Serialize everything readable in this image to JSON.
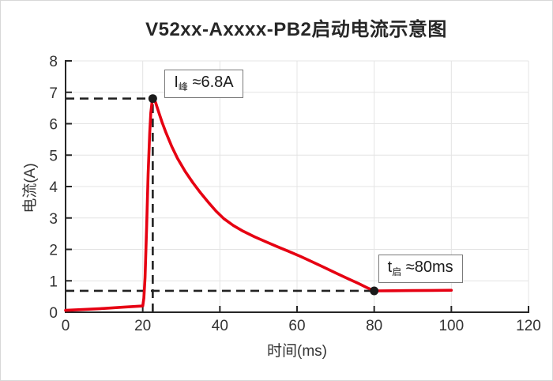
{
  "page": {
    "title": "V52xx-Axxxx-PB2启动电流示意图"
  },
  "chart_data": {
    "type": "line",
    "title": "V52xx-Axxxx-PB2启动电流示意图",
    "xlabel": "时间(ms)",
    "ylabel": "电流(A)",
    "xlim": [
      0,
      120
    ],
    "ylim": [
      0,
      8
    ],
    "xticks": [
      0,
      20,
      40,
      60,
      80,
      100,
      120
    ],
    "yticks": [
      0,
      1,
      2,
      3,
      4,
      5,
      6,
      7,
      8
    ],
    "grid": true,
    "legend": "none",
    "colors": {
      "curve": "#e60012",
      "dash": "#222222",
      "grid": "#e4e4e4",
      "axis": "#262626",
      "tick_text": "#333333",
      "marker": "#1a1a1a"
    },
    "key_values": {
      "peak_current_A": 6.8,
      "startup_time_ms": 80,
      "settle_current_A": 0.68
    },
    "series": [
      {
        "name": "startup-inrush-current",
        "color": "#e60012",
        "points": [
          [
            0,
            0.06
          ],
          [
            5,
            0.09
          ],
          [
            10,
            0.12
          ],
          [
            15,
            0.16
          ],
          [
            20,
            0.2
          ],
          [
            20.3,
            0.45
          ],
          [
            20.6,
            1.1
          ],
          [
            21.0,
            2.7
          ],
          [
            21.4,
            4.4
          ],
          [
            21.8,
            5.7
          ],
          [
            22.1,
            6.35
          ],
          [
            22.4,
            6.68
          ],
          [
            22.6,
            6.8
          ],
          [
            23.0,
            6.78
          ],
          [
            23.4,
            6.65
          ],
          [
            24,
            6.42
          ],
          [
            25,
            6.05
          ],
          [
            26,
            5.72
          ],
          [
            27.5,
            5.28
          ],
          [
            29,
            4.9
          ],
          [
            31,
            4.48
          ],
          [
            33,
            4.12
          ],
          [
            35,
            3.8
          ],
          [
            37,
            3.5
          ],
          [
            39,
            3.22
          ],
          [
            41,
            2.98
          ],
          [
            43.5,
            2.76
          ],
          [
            46,
            2.58
          ],
          [
            49,
            2.4
          ],
          [
            52,
            2.24
          ],
          [
            55,
            2.08
          ],
          [
            58,
            1.93
          ],
          [
            61,
            1.77
          ],
          [
            64,
            1.6
          ],
          [
            67,
            1.43
          ],
          [
            70,
            1.25
          ],
          [
            73,
            1.08
          ],
          [
            76,
            0.91
          ],
          [
            78,
            0.79
          ],
          [
            80,
            0.68
          ],
          [
            85,
            0.685
          ],
          [
            90,
            0.69
          ],
          [
            95,
            0.695
          ],
          [
            100,
            0.7
          ]
        ]
      }
    ],
    "annotations": [
      {
        "id": "peak-current",
        "text": "I峰 ≈6.8A",
        "pre": "I",
        "sub": "峰",
        "post": " ≈6.8A",
        "point": [
          22.6,
          6.8
        ]
      },
      {
        "id": "startup-time",
        "text": "t启 ≈80ms",
        "pre": "t",
        "sub": "启",
        "post": " ≈80ms",
        "point": [
          80,
          0.68
        ]
      }
    ],
    "dashed_lines": [
      {
        "from": [
          0,
          6.8
        ],
        "to": [
          22.6,
          6.8
        ]
      },
      {
        "from": [
          22.6,
          0
        ],
        "to": [
          22.6,
          6.8
        ]
      },
      {
        "from": [
          0,
          0.68
        ],
        "to": [
          80,
          0.68
        ]
      }
    ]
  }
}
